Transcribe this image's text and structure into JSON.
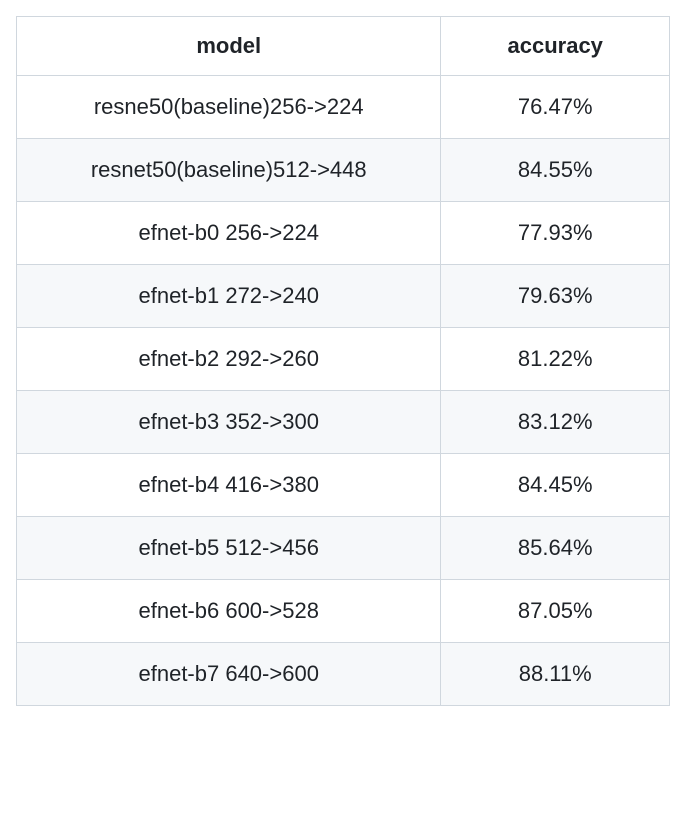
{
  "table": {
    "type": "table",
    "columns": [
      "model",
      "accuracy"
    ],
    "column_widths": [
      "65%",
      "35%"
    ],
    "header_fontsize": 22,
    "header_fontweight": 600,
    "body_fontsize": 22,
    "border_color": "#d0d7de",
    "text_color": "#1f2328",
    "row_bg_even": "#f6f8fa",
    "row_bg_odd": "#ffffff",
    "text_align": "center",
    "rows": [
      {
        "model": "resne50(baseline)256->224",
        "accuracy": "76.47%"
      },
      {
        "model": "resnet50(baseline)512->448",
        "accuracy": "84.55%"
      },
      {
        "model": "efnet-b0 256->224",
        "accuracy": "77.93%"
      },
      {
        "model": "efnet-b1 272->240",
        "accuracy": "79.63%"
      },
      {
        "model": "efnet-b2 292->260",
        "accuracy": "81.22%"
      },
      {
        "model": "efnet-b3 352->300",
        "accuracy": "83.12%"
      },
      {
        "model": "efnet-b4 416->380",
        "accuracy": "84.45%"
      },
      {
        "model": "efnet-b5 512->456",
        "accuracy": "85.64%"
      },
      {
        "model": "efnet-b6 600->528",
        "accuracy": "87.05%"
      },
      {
        "model": "efnet-b7 640->600",
        "accuracy": "88.11%"
      }
    ]
  }
}
